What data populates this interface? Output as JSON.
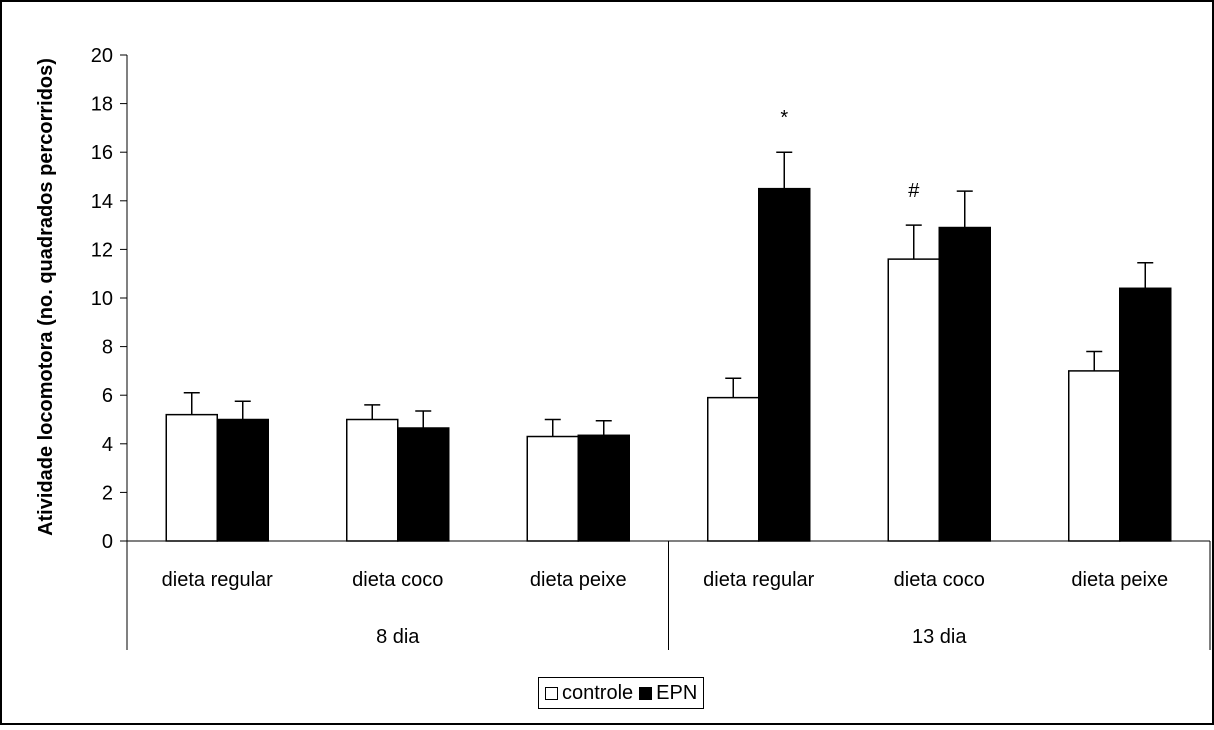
{
  "chart_data": {
    "type": "bar",
    "ylabel": "Atividade locomotora (no. quadrados percorridos)",
    "xlabel": "",
    "ylim": [
      0,
      20
    ],
    "yticks": [
      0,
      2,
      4,
      6,
      8,
      10,
      12,
      14,
      16,
      18,
      20
    ],
    "grid": false,
    "legend_position": "bottom-center",
    "categories": [
      "dieta regular",
      "dieta coco",
      "dieta peixe",
      "dieta regular",
      "dieta coco",
      "dieta peixe"
    ],
    "groups": [
      {
        "label": "8 dia",
        "span": 3
      },
      {
        "label": "13 dia",
        "span": 3
      }
    ],
    "series": [
      {
        "name": "controle",
        "color": "#ffffff",
        "values": [
          5.2,
          5.0,
          4.3,
          5.9,
          11.6,
          7.0
        ],
        "errors": [
          0.9,
          0.6,
          0.7,
          0.8,
          1.4,
          0.8
        ]
      },
      {
        "name": "EPN",
        "color": "#000000",
        "values": [
          5.0,
          4.65,
          4.35,
          14.5,
          12.9,
          10.4
        ],
        "errors": [
          0.75,
          0.7,
          0.6,
          1.5,
          1.5,
          1.05
        ]
      }
    ],
    "annotations": [
      {
        "text": "*",
        "category_index": 3,
        "series_index": 1
      },
      {
        "text": "#",
        "category_index": 4,
        "series_index": 0
      }
    ]
  }
}
